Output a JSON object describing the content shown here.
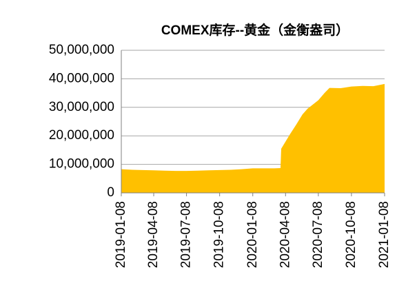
{
  "chart_data": {
    "type": "area",
    "title": "COMEX库存--黄金（金衡盎司）",
    "color": "#ffc000",
    "grid": true,
    "x": [
      "2019-01-08",
      "2019-02-08",
      "2019-03-08",
      "2019-04-08",
      "2019-05-08",
      "2019-06-08",
      "2019-07-08",
      "2019-08-08",
      "2019-09-08",
      "2019-10-08",
      "2019-11-08",
      "2019-12-08",
      "2020-01-08",
      "2020-02-08",
      "2020-03-08",
      "2020-03-25",
      "2020-03-27",
      "2020-04-08",
      "2020-04-20",
      "2020-05-08",
      "2020-05-25",
      "2020-06-08",
      "2020-07-08",
      "2020-07-25",
      "2020-08-08",
      "2020-09-08",
      "2020-10-08",
      "2020-11-08",
      "2020-12-08",
      "2021-01-08"
    ],
    "values": [
      8300000,
      8100000,
      8000000,
      7900000,
      7800000,
      7700000,
      7700000,
      7800000,
      7900000,
      8000000,
      8100000,
      8300000,
      8600000,
      8600000,
      8600000,
      8700000,
      15500000,
      18000000,
      20500000,
      24000000,
      27500000,
      29500000,
      32500000,
      35000000,
      36800000,
      36700000,
      37300000,
      37500000,
      37400000,
      38200000
    ],
    "xlim": [
      "2019-01-08",
      "2021-01-08"
    ],
    "xticks": [
      "2019-01-08",
      "2019-04-08",
      "2019-07-08",
      "2019-10-08",
      "2020-01-08",
      "2020-04-08",
      "2020-07-08",
      "2020-10-08",
      "2021-01-08"
    ],
    "ylim": [
      0,
      50000000
    ],
    "yticks": [
      0,
      {
        "value": 10000000,
        "label": "10,000,000"
      },
      {
        "value": 20000000,
        "label": "20,000,000"
      },
      {
        "value": 30000000,
        "label": "30,000,000"
      },
      {
        "value": 40000000,
        "label": "40,000,000"
      },
      {
        "value": 50000000,
        "label": "50,000,000"
      }
    ]
  }
}
